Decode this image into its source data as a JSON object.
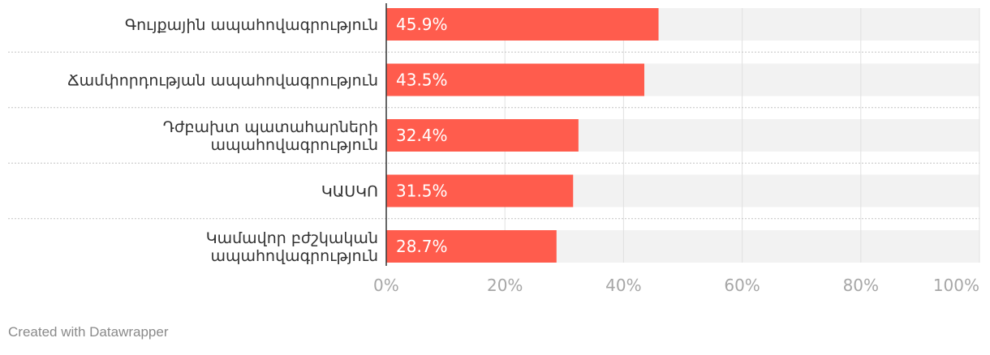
{
  "chart_data": {
    "type": "bar",
    "orientation": "horizontal",
    "categories": [
      [
        "Գույքային ապահովագրություն"
      ],
      [
        "Ճամփորդության ապահովագրություն"
      ],
      [
        "Դժբախտ պատահարների",
        "ապահովագրություն"
      ],
      [
        "ԿԱՍԿՈ"
      ],
      [
        "Կամավոր բժշկական",
        "ապահովագրություն"
      ]
    ],
    "values": [
      45.9,
      43.5,
      32.4,
      31.5,
      28.7
    ],
    "value_labels": [
      "45.9%",
      "43.5%",
      "32.4%",
      "31.5%",
      "28.7%"
    ],
    "xlim": [
      0,
      100
    ],
    "x_ticks": [
      0,
      20,
      40,
      60,
      80,
      100
    ],
    "x_tick_labels": [
      "0%",
      "20%",
      "40%",
      "60%",
      "80%",
      "100%"
    ],
    "grid": true,
    "colors": {
      "bar": "#ff5c4d",
      "track": "#f2f2f2",
      "grid": "#e0e0e0",
      "tick_text": "#a6a6a6"
    }
  },
  "footer": {
    "credit": "Created with Datawrapper"
  }
}
